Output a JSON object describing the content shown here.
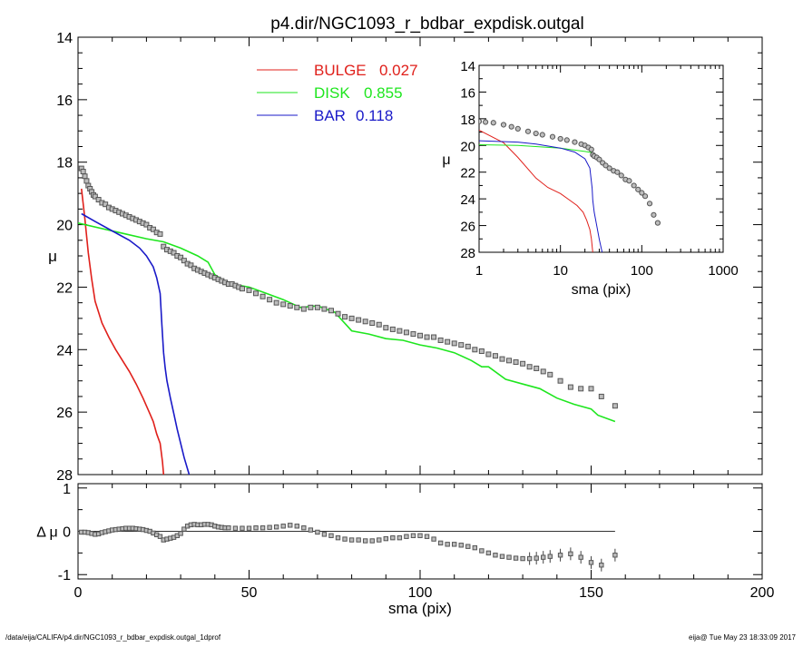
{
  "chart_data": [
    {
      "id": "main",
      "type": "line",
      "title": "p4.dir/NGC1093_r_bdbar_expdisk.outgal",
      "xlabel": "",
      "ylabel": "μ",
      "xlim": [
        0,
        200
      ],
      "ylim": [
        28,
        14
      ],
      "y_inverted": true,
      "yticks": [
        14,
        16,
        18,
        20,
        22,
        24,
        26,
        28
      ],
      "grid": false,
      "legend_position": "top-center",
      "legend": [
        {
          "label": "BULGE",
          "value": "0.027",
          "color": "#e0201b"
        },
        {
          "label": "DISK",
          "value": "0.855",
          "color": "#1ee61e"
        },
        {
          "label": "BAR",
          "value": "0.118",
          "color": "#1a1ac8"
        }
      ],
      "series": [
        {
          "name": "BULGE",
          "color": "#e0201b",
          "x": [
            1,
            2,
            3,
            4,
            5,
            7,
            9,
            11,
            13,
            15,
            17,
            19,
            21,
            22,
            23,
            24,
            24.7,
            25
          ],
          "y": [
            18.85,
            19.8,
            20.9,
            21.75,
            22.45,
            23.15,
            23.6,
            24.0,
            24.35,
            24.7,
            25.1,
            25.55,
            26.05,
            26.3,
            26.7,
            27.0,
            27.6,
            28.0
          ]
        },
        {
          "name": "DISK",
          "color": "#1ee61e",
          "x": [
            0,
            10,
            20,
            25,
            30,
            35,
            38,
            40,
            42,
            45,
            50,
            55,
            60,
            65,
            70,
            75,
            80,
            85,
            90,
            95,
            100,
            105,
            110,
            115,
            118,
            120,
            125,
            130,
            135,
            140,
            145,
            150,
            152,
            157
          ],
          "y": [
            19.95,
            20.2,
            20.45,
            20.55,
            20.75,
            21.0,
            21.2,
            21.6,
            21.75,
            21.9,
            22.0,
            22.2,
            22.4,
            22.65,
            22.6,
            22.8,
            23.4,
            23.5,
            23.65,
            23.7,
            23.85,
            23.95,
            24.1,
            24.35,
            24.55,
            24.55,
            24.95,
            25.1,
            25.25,
            25.55,
            25.75,
            25.9,
            26.1,
            26.3
          ]
        },
        {
          "name": "BAR",
          "color": "#1a1ac8",
          "x": [
            1,
            5,
            10,
            15,
            18,
            20,
            22,
            23,
            24,
            24.5,
            25,
            25.5,
            26,
            27,
            28,
            29,
            30,
            31,
            32.5
          ],
          "y": [
            19.65,
            19.9,
            20.2,
            20.5,
            20.75,
            21.0,
            21.35,
            21.7,
            22.2,
            23.2,
            24.1,
            24.6,
            25.0,
            25.55,
            26.05,
            26.55,
            27.0,
            27.45,
            28.0
          ]
        },
        {
          "name": "data",
          "color": "#555555",
          "marker": "square",
          "x": [
            1,
            1.5,
            2,
            2.5,
            3,
            3.5,
            4,
            4.5,
            5,
            6,
            7,
            8,
            9,
            10,
            11,
            12,
            13,
            14,
            15,
            16,
            17,
            18,
            19,
            20,
            21,
            22,
            23,
            24,
            25,
            26,
            27,
            28,
            29,
            30,
            31,
            32,
            33,
            34,
            35,
            36,
            37,
            38,
            39,
            40,
            41,
            42,
            43,
            44,
            45,
            46,
            47,
            48,
            50,
            52,
            54,
            56,
            58,
            60,
            62,
            64,
            66,
            68,
            70,
            72,
            74,
            76,
            78,
            80,
            82,
            84,
            86,
            88,
            90,
            92,
            94,
            96,
            98,
            100,
            102,
            104,
            106,
            108,
            110,
            112,
            114,
            116,
            118,
            120,
            122,
            124,
            126,
            128,
            130,
            132,
            134,
            136,
            138,
            141,
            144,
            147,
            150,
            153,
            157
          ],
          "y": [
            18.2,
            18.3,
            18.45,
            18.6,
            18.75,
            18.85,
            18.95,
            19.05,
            19.1,
            19.2,
            19.3,
            19.35,
            19.45,
            19.5,
            19.55,
            19.6,
            19.65,
            19.7,
            19.75,
            19.8,
            19.85,
            19.9,
            19.95,
            20.0,
            20.1,
            20.15,
            20.25,
            20.3,
            20.7,
            20.8,
            20.85,
            20.9,
            21.0,
            21.05,
            21.15,
            21.25,
            21.3,
            21.4,
            21.45,
            21.5,
            21.55,
            21.6,
            21.65,
            21.7,
            21.75,
            21.8,
            21.85,
            21.9,
            21.9,
            21.95,
            22.0,
            22.05,
            22.1,
            22.2,
            22.3,
            22.4,
            22.5,
            22.55,
            22.6,
            22.65,
            22.7,
            22.65,
            22.65,
            22.7,
            22.75,
            22.85,
            22.95,
            23.0,
            23.05,
            23.1,
            23.15,
            23.2,
            23.3,
            23.35,
            23.4,
            23.45,
            23.5,
            23.55,
            23.6,
            23.6,
            23.7,
            23.75,
            23.8,
            23.85,
            23.9,
            24.0,
            24.05,
            24.15,
            24.2,
            24.3,
            24.35,
            24.4,
            24.45,
            24.55,
            24.6,
            24.7,
            24.8,
            25.0,
            25.2,
            25.25,
            25.25,
            25.5,
            25.8
          ]
        }
      ]
    },
    {
      "id": "inset",
      "type": "line",
      "title": "",
      "xlabel": "sma (pix)",
      "ylabel": "μ",
      "x_scale": "log",
      "xlim": [
        1,
        1000
      ],
      "xticks": [
        1,
        10,
        100,
        1000
      ],
      "ylim": [
        28,
        14
      ],
      "y_inverted": true,
      "yticks": [
        14,
        16,
        18,
        20,
        22,
        24,
        26,
        28
      ],
      "grid": false,
      "series": [
        {
          "name": "BULGE",
          "color": "#e0201b",
          "x": [
            1,
            2,
            3,
            5,
            7,
            10,
            13,
            16,
            19,
            21,
            23,
            24,
            25
          ],
          "y": [
            18.85,
            19.8,
            20.9,
            22.45,
            23.15,
            23.6,
            24.1,
            24.5,
            25.0,
            25.6,
            26.3,
            27.0,
            28.0
          ]
        },
        {
          "name": "DISK",
          "color": "#1ee61e",
          "x": [
            1,
            3,
            10,
            20,
            25
          ],
          "y": [
            19.95,
            20.0,
            20.2,
            20.45,
            20.55
          ]
        },
        {
          "name": "BAR",
          "color": "#1a1ac8",
          "x": [
            1,
            3,
            5,
            10,
            15,
            20,
            23,
            24.5,
            25,
            26,
            28,
            30,
            32.5
          ],
          "y": [
            19.65,
            19.75,
            19.9,
            20.2,
            20.5,
            21.0,
            21.7,
            23.2,
            24.1,
            25.0,
            26.05,
            27.0,
            28.0
          ]
        },
        {
          "name": "data",
          "color": "#555555",
          "marker": "circle",
          "x": [
            1,
            1.2,
            1.5,
            2,
            2.5,
            3,
            4,
            5,
            6,
            8,
            10,
            12,
            15,
            18,
            20,
            22,
            24,
            25,
            26,
            28,
            30,
            33,
            36,
            40,
            45,
            50,
            56,
            63,
            70,
            80,
            90,
            100,
            110,
            125,
            140,
            157
          ],
          "y": [
            18.2,
            18.25,
            18.3,
            18.45,
            18.6,
            18.75,
            18.95,
            19.1,
            19.2,
            19.35,
            19.5,
            19.6,
            19.75,
            19.9,
            20.0,
            20.15,
            20.3,
            20.7,
            20.8,
            20.9,
            21.05,
            21.3,
            21.5,
            21.7,
            21.9,
            22.0,
            22.25,
            22.55,
            22.65,
            23.0,
            23.3,
            23.55,
            23.8,
            24.35,
            25.2,
            25.8
          ]
        }
      ]
    },
    {
      "id": "residual",
      "type": "scatter",
      "title": "",
      "xlabel": "sma (pix)",
      "ylabel": "Δ μ",
      "xlim": [
        0,
        200
      ],
      "xticks": [
        0,
        50,
        100,
        150,
        200
      ],
      "ylim": [
        -1.1,
        1.1
      ],
      "yticks": [
        -1,
        0,
        1
      ],
      "grid": false,
      "reference_line": {
        "y": 0,
        "x": [
          0,
          157
        ]
      },
      "series": [
        {
          "name": "residual",
          "color": "#555555",
          "marker": "square",
          "x": [
            1,
            2,
            3,
            4,
            5,
            6,
            7,
            8,
            9,
            10,
            11,
            12,
            13,
            14,
            15,
            16,
            17,
            18,
            19,
            20,
            21,
            22,
            23,
            24,
            25,
            26,
            27,
            28,
            29,
            30,
            31,
            32,
            33,
            34,
            35,
            36,
            37,
            38,
            39,
            40,
            41,
            42,
            43,
            44,
            46,
            48,
            50,
            52,
            54,
            56,
            58,
            60,
            62,
            64,
            66,
            68,
            70,
            72,
            74,
            76,
            78,
            80,
            82,
            84,
            86,
            88,
            90,
            92,
            94,
            96,
            98,
            100,
            102,
            104,
            106,
            108,
            110,
            112,
            114,
            116,
            118,
            120,
            122,
            124,
            126,
            128,
            130,
            132,
            134,
            136,
            138,
            141,
            144,
            147,
            150,
            153,
            157
          ],
          "y": [
            -0.02,
            -0.02,
            -0.03,
            -0.05,
            -0.07,
            -0.06,
            -0.03,
            -0.01,
            0.01,
            0.03,
            0.04,
            0.05,
            0.06,
            0.07,
            0.07,
            0.07,
            0.06,
            0.05,
            0.04,
            0.02,
            0.0,
            -0.04,
            -0.08,
            -0.12,
            -0.2,
            -0.18,
            -0.16,
            -0.14,
            -0.1,
            -0.05,
            0.05,
            0.12,
            0.15,
            0.16,
            0.15,
            0.15,
            0.16,
            0.16,
            0.15,
            0.12,
            0.1,
            0.09,
            0.08,
            0.08,
            0.07,
            0.07,
            0.07,
            0.08,
            0.08,
            0.09,
            0.1,
            0.12,
            0.14,
            0.12,
            0.08,
            0.03,
            -0.02,
            -0.07,
            -0.1,
            -0.15,
            -0.18,
            -0.2,
            -0.2,
            -0.22,
            -0.22,
            -0.2,
            -0.17,
            -0.15,
            -0.15,
            -0.12,
            -0.1,
            -0.1,
            -0.12,
            -0.18,
            -0.27,
            -0.3,
            -0.3,
            -0.32,
            -0.35,
            -0.38,
            -0.45,
            -0.5,
            -0.55,
            -0.58,
            -0.6,
            -0.62,
            -0.63,
            -0.63,
            -0.62,
            -0.6,
            -0.58,
            -0.55,
            -0.52,
            -0.6,
            -0.72,
            -0.78,
            -0.55
          ]
        }
      ]
    }
  ],
  "footer": {
    "left": "/data/eija/CALIFA/p4.dir/NGC1093_r_bdbar_expdisk.outgal_1dprof",
    "right": "eija@  Tue May 23 18:33:09 2017"
  }
}
